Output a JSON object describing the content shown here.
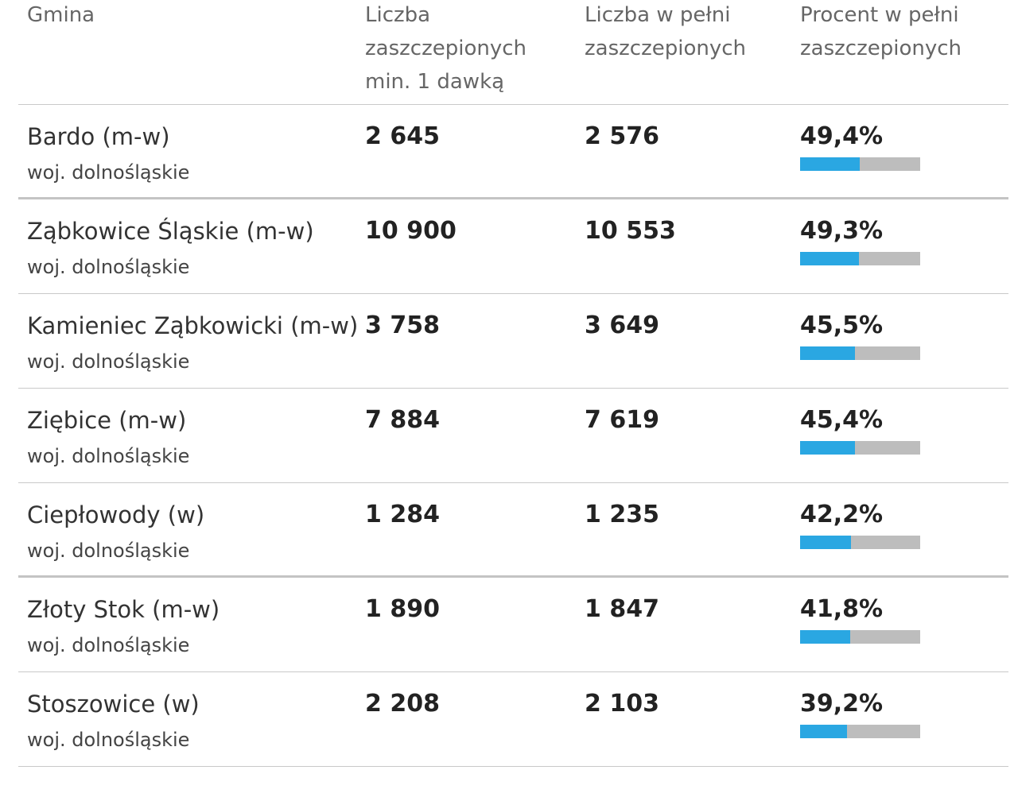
{
  "header": {
    "gmina": "Gmina",
    "min1_line1": "Liczba",
    "min1_line2": "zaszczepionych",
    "min1_line3": "min. 1 dawką",
    "full_line1": "Liczba w pełni",
    "full_line2": "zaszczepionych",
    "pct_line1": "Procent w pełni",
    "pct_line2": "zaszczepionych"
  },
  "colors": {
    "bar_fill": "#2aa7e2",
    "bar_track": "#bdbdbd"
  },
  "rows": [
    {
      "name": "Bardo (m-w)",
      "region": "woj. dolnośląskie",
      "min1": "2 645",
      "full": "2 576",
      "pct_label": "49,4%",
      "pct": 49.4
    },
    {
      "name": "Ząbkowice Śląskie (m-w)",
      "region": "woj. dolnośląskie",
      "min1": "10 900",
      "full": "10 553",
      "pct_label": "49,3%",
      "pct": 49.3
    },
    {
      "name": "Kamieniec Ząbkowicki (m-w)",
      "region": "woj. dolnośląskie",
      "min1": "3 758",
      "full": "3 649",
      "pct_label": "45,5%",
      "pct": 45.5
    },
    {
      "name": "Ziębice (m-w)",
      "region": "woj. dolnośląskie",
      "min1": "7 884",
      "full": "7 619",
      "pct_label": "45,4%",
      "pct": 45.4
    },
    {
      "name": "Ciepłowody (w)",
      "region": "woj. dolnośląskie",
      "min1": "1 284",
      "full": "1 235",
      "pct_label": "42,2%",
      "pct": 42.2
    },
    {
      "name": "Złoty Stok (m-w)",
      "region": "woj. dolnośląskie",
      "min1": "1 890",
      "full": "1 847",
      "pct_label": "41,8%",
      "pct": 41.8
    },
    {
      "name": "Stoszowice (w)",
      "region": "woj. dolnośląskie",
      "min1": "2 208",
      "full": "2 103",
      "pct_label": "39,2%",
      "pct": 39.2
    }
  ]
}
